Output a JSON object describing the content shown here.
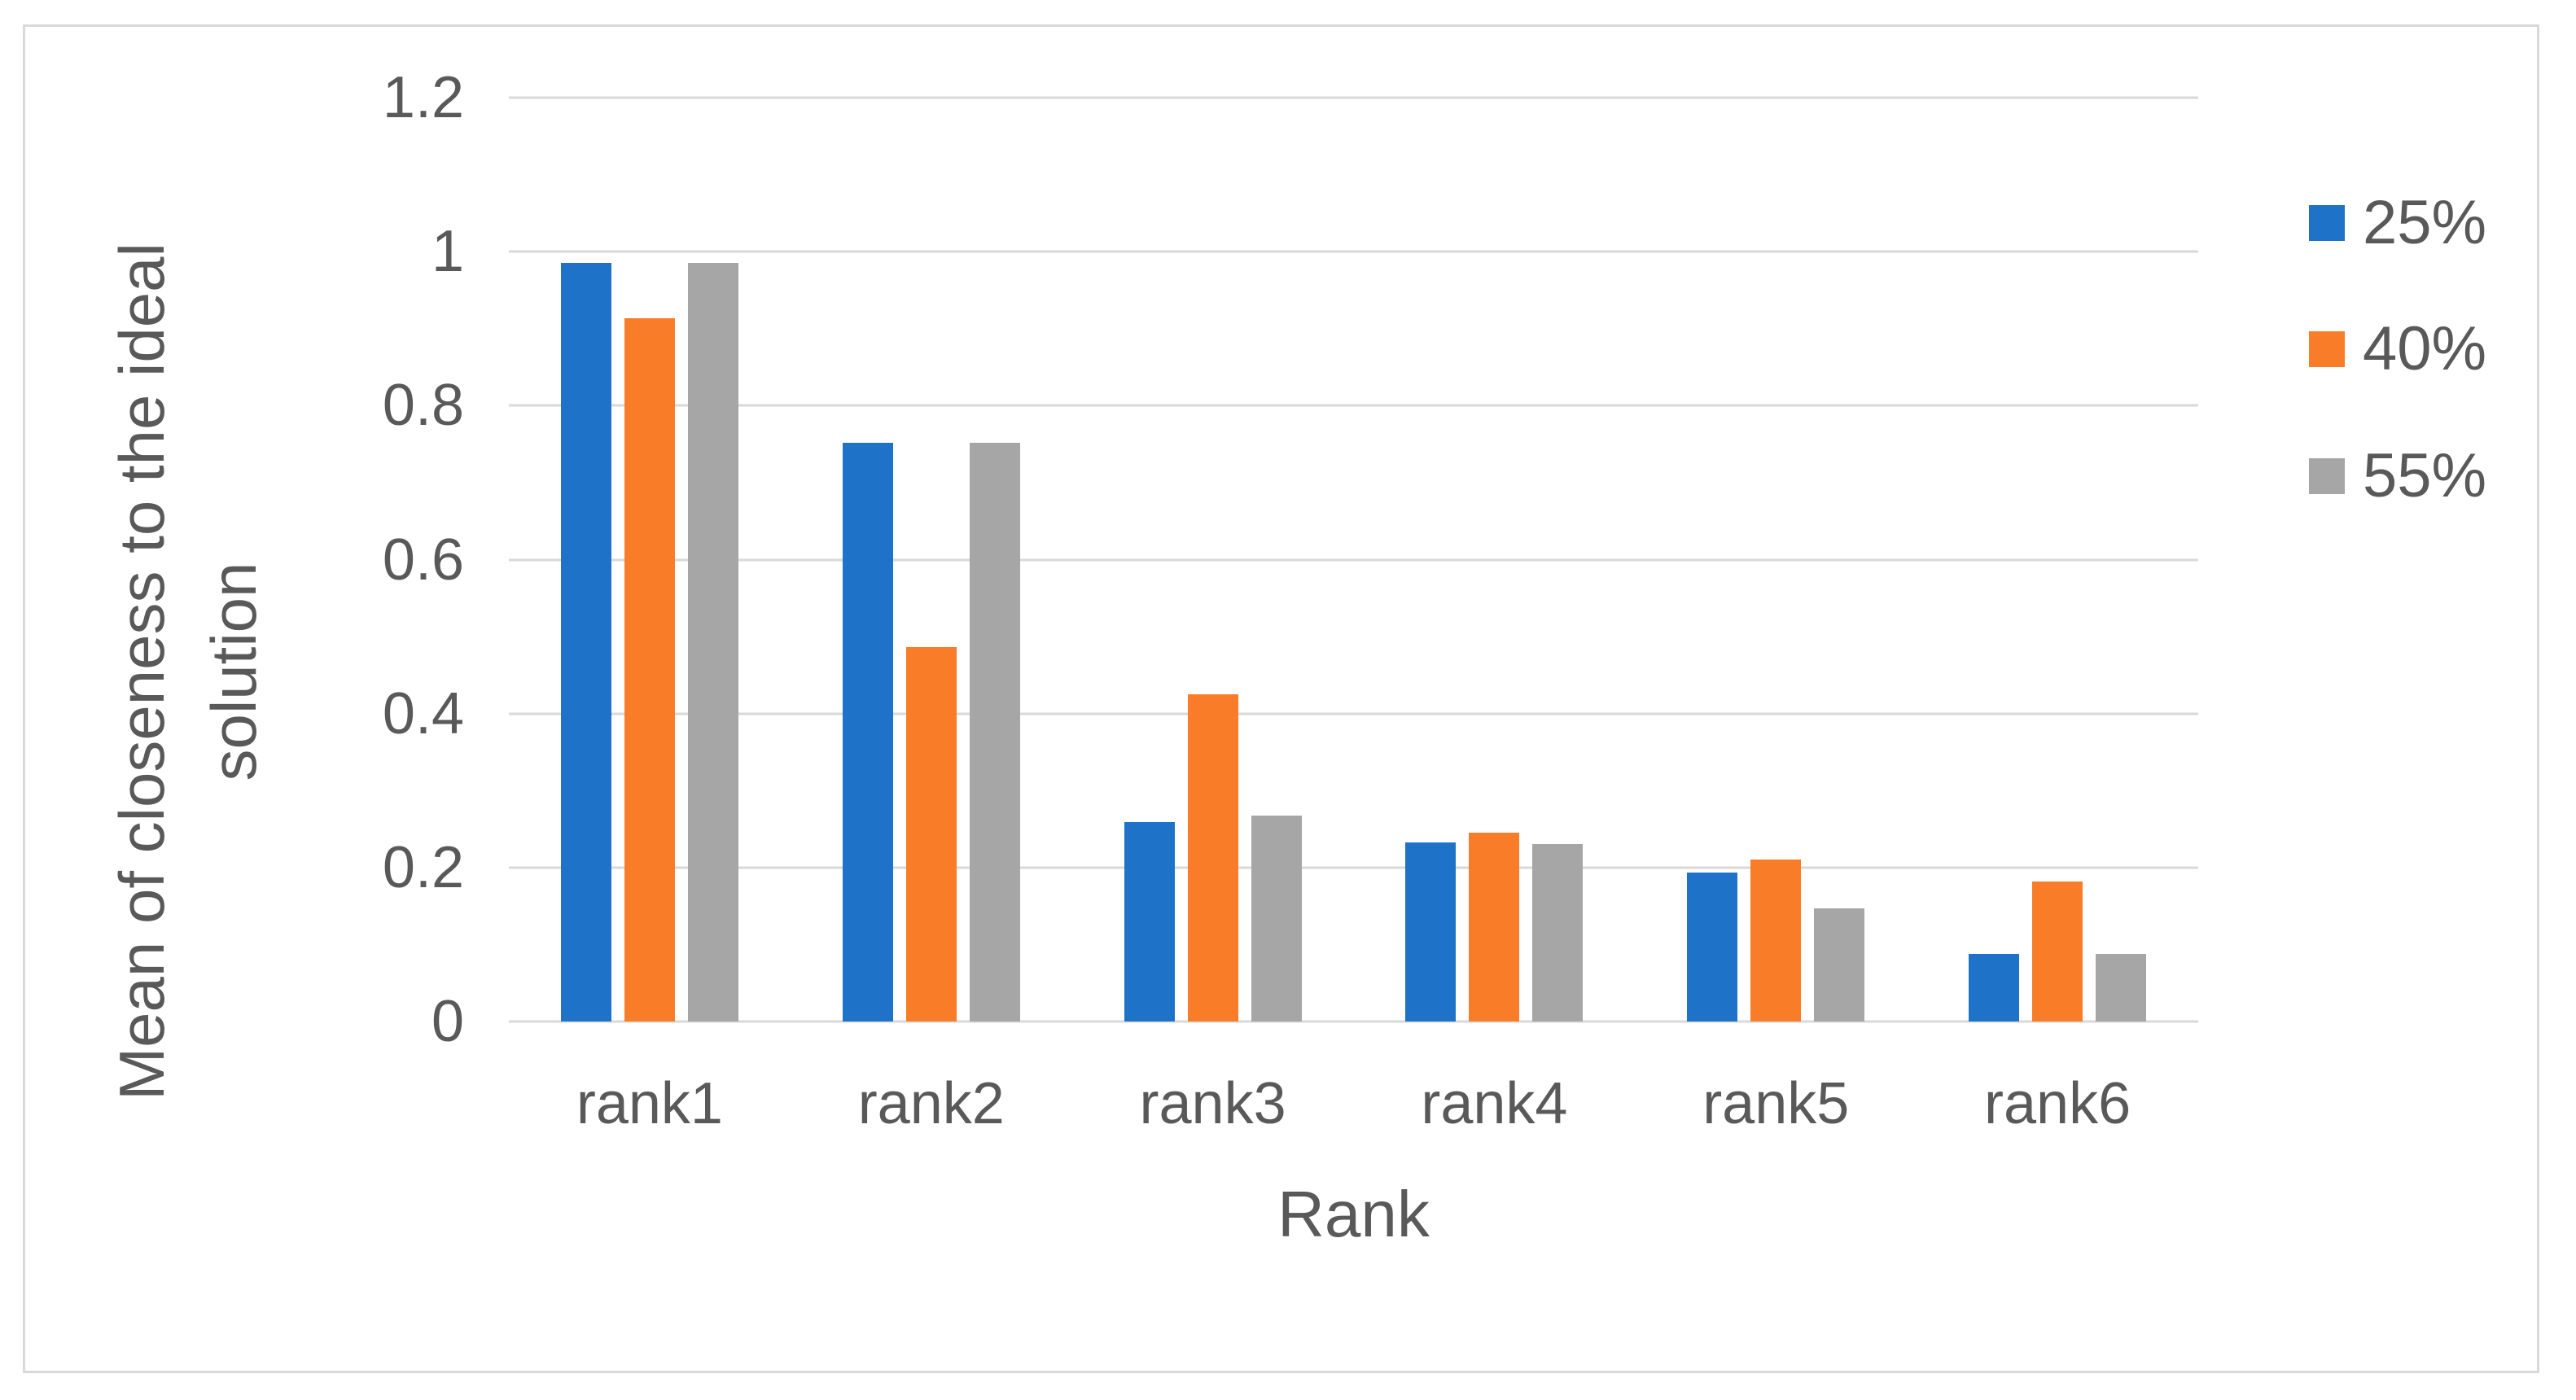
{
  "figure": {
    "background": "#FFFFFF",
    "border_color": "#D9D9D9"
  },
  "chart_data": {
    "type": "bar",
    "title": "",
    "xlabel": "Rank",
    "ylabel": "Mean of closeness to the ideal solution",
    "ylabel_lines": [
      "Mean of closeness to the ideal",
      "solution"
    ],
    "categories": [
      "rank1",
      "rank2",
      "rank3",
      "rank4",
      "rank5",
      "rank6"
    ],
    "series": [
      {
        "name": "25%",
        "color": "#1E73C8",
        "values": [
          0.985,
          0.752,
          0.259,
          0.233,
          0.194,
          0.088
        ]
      },
      {
        "name": "40%",
        "color": "#F97D28",
        "values": [
          0.913,
          0.486,
          0.425,
          0.245,
          0.21,
          0.182
        ]
      },
      {
        "name": "55%",
        "color": "#A6A6A6",
        "values": [
          0.985,
          0.752,
          0.268,
          0.231,
          0.147,
          0.088
        ]
      }
    ],
    "y_axis": {
      "min": 0,
      "max": 1.2,
      "step": 0.2,
      "tick_labels": [
        "0",
        "0.2",
        "0.4",
        "0.6",
        "0.8",
        "1",
        "1.2"
      ]
    },
    "grid": true,
    "legend_position": "right",
    "axis_text_color": "#595959",
    "gridline_color": "#D9D9D9"
  }
}
